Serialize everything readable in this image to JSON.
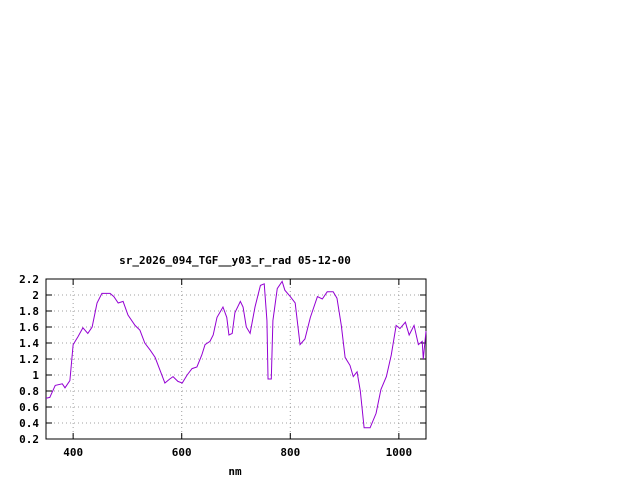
{
  "chart_data": {
    "type": "line",
    "title": "sr_2026_094_TGF__y03_r_rad 05-12-00",
    "x_label": "nm",
    "xlim": [
      350,
      1050
    ],
    "xticks": [
      400,
      600,
      800,
      1000
    ],
    "ylim": [
      0.2,
      2.2
    ],
    "yticks": [
      0.2,
      0.4,
      0.6,
      0.8,
      1,
      1.2,
      1.4,
      1.6,
      1.8,
      2,
      2.2
    ],
    "grid": true,
    "x": [
      350,
      357,
      367,
      380,
      385,
      394,
      400,
      409,
      418,
      427,
      435,
      444,
      453,
      468,
      475,
      483,
      492,
      501,
      514,
      523,
      532,
      542,
      551,
      560,
      569,
      578,
      584,
      593,
      601,
      610,
      619,
      628,
      637,
      643,
      652,
      658,
      665,
      676,
      683,
      687,
      693,
      698,
      708,
      713,
      719,
      726,
      735,
      745,
      752,
      757,
      759,
      765,
      768,
      776,
      785,
      790,
      800,
      809,
      818,
      827,
      837,
      850,
      859,
      868,
      879,
      886,
      894,
      901,
      910,
      916,
      923,
      929,
      936,
      947,
      958,
      967,
      977,
      986,
      995,
      1002,
      1012,
      1019,
      1028,
      1036,
      1043,
      1045,
      1050
    ],
    "series": [
      {
        "color": "#9400d3",
        "values": [
          0.71,
          0.72,
          0.87,
          0.89,
          0.84,
          0.93,
          1.38,
          1.48,
          1.59,
          1.52,
          1.6,
          1.9,
          2.02,
          2.02,
          1.98,
          1.9,
          1.92,
          1.75,
          1.62,
          1.56,
          1.4,
          1.31,
          1.22,
          1.06,
          0.9,
          0.95,
          0.98,
          0.92,
          0.9,
          1.0,
          1.08,
          1.1,
          1.25,
          1.38,
          1.42,
          1.5,
          1.72,
          1.85,
          1.72,
          1.5,
          1.52,
          1.78,
          1.92,
          1.85,
          1.6,
          1.52,
          1.85,
          2.12,
          2.14,
          1.68,
          0.95,
          0.95,
          1.68,
          2.08,
          2.17,
          2.06,
          1.98,
          1.9,
          1.38,
          1.45,
          1.72,
          1.98,
          1.95,
          2.04,
          2.04,
          1.96,
          1.62,
          1.22,
          1.12,
          0.98,
          1.04,
          0.8,
          0.34,
          0.34,
          0.52,
          0.82,
          0.98,
          1.25,
          1.62,
          1.58,
          1.66,
          1.5,
          1.62,
          1.38,
          1.42,
          1.2,
          1.55
        ]
      }
    ]
  }
}
